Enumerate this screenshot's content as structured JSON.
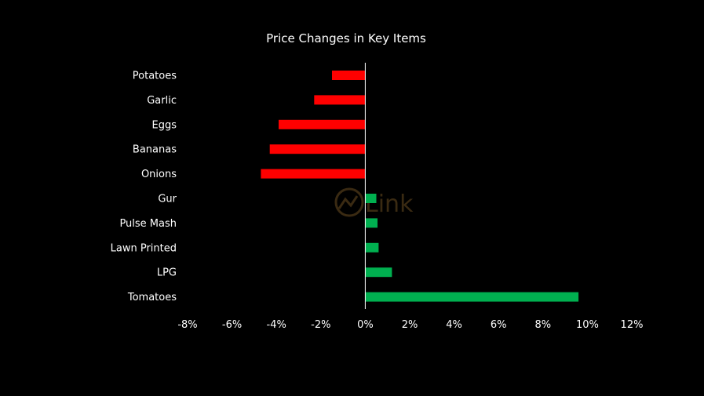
{
  "watermark": {
    "text": "Link",
    "color": "#3a2a12"
  },
  "chart_data": {
    "type": "bar",
    "orientation": "horizontal",
    "title": "Price Changes in Key Items",
    "categories": [
      "Potatoes",
      "Garlic",
      "Eggs",
      "Bananas",
      "Onions",
      "Gur",
      "Pulse Mash",
      "Lawn Printed",
      "LPG",
      "Tomatoes"
    ],
    "values": [
      -1.5,
      -2.3,
      -3.9,
      -4.3,
      -4.7,
      0.5,
      0.55,
      0.6,
      1.2,
      9.6
    ],
    "value_unit": "%",
    "xlim": [
      -8,
      12
    ],
    "xticks": [
      -8,
      -6,
      -4,
      -2,
      0,
      2,
      4,
      6,
      8,
      10,
      12
    ],
    "xtick_labels": [
      "-8%",
      "-6%",
      "-4%",
      "-2%",
      "0%",
      "2%",
      "4%",
      "6%",
      "8%",
      "10%",
      "12%"
    ],
    "xlabel": "",
    "ylabel": "",
    "grid": false,
    "legend": "none",
    "colors": {
      "negative": "#ff0000",
      "positive": "#00b050",
      "axis": "#ffffff",
      "text": "#ffffff",
      "background": "#000000"
    }
  }
}
